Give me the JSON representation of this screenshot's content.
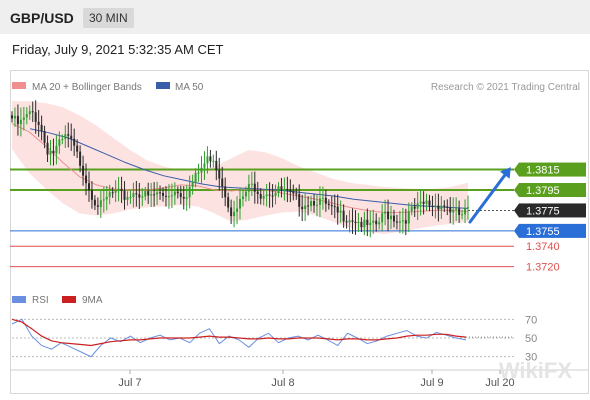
{
  "header": {
    "symbol": "GBP/USD",
    "timeframe": "30 MIN"
  },
  "datetime": "Friday, July 9, 2021 5:32:35 AM CET",
  "legend": {
    "ma20": {
      "label": "MA 20 + Bollinger Bands",
      "color": "#ef8f8f"
    },
    "ma50": {
      "label": "MA 50",
      "color": "#3a5da8"
    },
    "copyright": "Research © 2021 Trading Central"
  },
  "rsi_legend": {
    "rsi": {
      "label": "RSI",
      "color": "#6a8fe0"
    },
    "ma9": {
      "label": "9MA",
      "color": "#cc2020"
    }
  },
  "watermark": "WikiFX",
  "chart_data": {
    "type": "candlestick",
    "price_range": [
      1.3705,
      1.3885
    ],
    "levels": [
      {
        "value": 1.3815,
        "label": "1.3815",
        "role": "resistance",
        "color": "#5aa01e"
      },
      {
        "value": 1.3795,
        "label": "1.3795",
        "role": "resistance",
        "color": "#5aa01e"
      },
      {
        "value": 1.3775,
        "label": "1.3775",
        "role": "current",
        "color": "#2a2a2a"
      },
      {
        "value": 1.3755,
        "label": "1.3755",
        "role": "pivot",
        "color": "#2a6ed8"
      },
      {
        "value": 1.374,
        "label": "1.3740",
        "role": "support",
        "color": "#e05050"
      },
      {
        "value": 1.372,
        "label": "1.3720",
        "role": "support",
        "color": "#e05050"
      }
    ],
    "x_ticks": [
      "Jul 7",
      "Jul 8",
      "Jul 9",
      "Jul 20"
    ],
    "close_path": [
      1.3865,
      1.3858,
      1.3866,
      1.387,
      1.386,
      1.3835,
      1.3832,
      1.384,
      1.3848,
      1.3835,
      1.382,
      1.38,
      1.3785,
      1.3778,
      1.379,
      1.3792,
      1.3788,
      1.379,
      1.3794,
      1.379,
      1.3787,
      1.3792,
      1.3788,
      1.3793,
      1.3795,
      1.379,
      1.38,
      1.3812,
      1.3822,
      1.383,
      1.381,
      1.379,
      1.3768,
      1.3782,
      1.3795,
      1.38,
      1.3792,
      1.3794,
      1.3792,
      1.3795,
      1.379,
      1.3786,
      1.3782,
      1.3784,
      1.3786,
      1.3782,
      1.3776,
      1.3772,
      1.377,
      1.3768,
      1.3765,
      1.376,
      1.3758,
      1.3762,
      1.3772,
      1.377,
      1.3765,
      1.3768,
      1.3775,
      1.3778,
      1.3782,
      1.378,
      1.3782,
      1.3778,
      1.3772,
      1.377,
      1.3775
    ],
    "bollinger_upper": [
      1.3882,
      1.3882,
      1.388,
      1.3876,
      1.3868,
      1.3858,
      1.3846,
      1.3834,
      1.3824,
      1.3818,
      1.3814,
      1.3814,
      1.3818,
      1.3826,
      1.3834,
      1.3832,
      1.3826,
      1.3818,
      1.3812,
      1.3806,
      1.3802,
      1.38,
      1.3798,
      1.3797,
      1.3796,
      1.3796,
      1.3798,
      1.3802
    ],
    "bollinger_lower": [
      1.3835,
      1.3812,
      1.3796,
      1.3782,
      1.3772,
      1.377,
      1.3772,
      1.3776,
      1.3778,
      1.3779,
      1.378,
      1.3779,
      1.3772,
      1.3764,
      1.3766,
      1.377,
      1.3773,
      1.3774,
      1.377,
      1.3764,
      1.3758,
      1.3754,
      1.3752,
      1.3754,
      1.3757,
      1.376,
      1.3762,
      1.3764
    ],
    "ma20": [
      1.386,
      1.3852,
      1.3838,
      1.3822,
      1.3808,
      1.38,
      1.3796,
      1.3795,
      1.3795,
      1.3797,
      1.38,
      1.3799,
      1.3795,
      1.3794,
      1.3796,
      1.3795,
      1.3792,
      1.3789,
      1.3786,
      1.3782,
      1.3778,
      1.3775,
      1.3773,
      1.3773,
      1.3774,
      1.3775,
      1.3775,
      1.3774
    ],
    "ma50": [
      1.3855,
      1.3851,
      1.3846,
      1.3838,
      1.383,
      1.3822,
      1.3815,
      1.3809,
      1.3805,
      1.3801,
      1.3798,
      1.3797,
      1.3796,
      1.3795,
      1.3793,
      1.3791,
      1.3789,
      1.3786,
      1.3784,
      1.3782,
      1.378,
      1.3779,
      1.3778,
      1.3777
    ],
    "forecast_target": 1.3815,
    "rsi": {
      "range": [
        20,
        80
      ],
      "levels": [
        70,
        50,
        30
      ],
      "rsi_values": [
        65,
        70,
        52,
        42,
        38,
        45,
        40,
        35,
        30,
        42,
        50,
        46,
        52,
        45,
        50,
        53,
        48,
        50,
        45,
        55,
        60,
        44,
        52,
        48,
        40,
        50,
        55,
        45,
        50,
        52,
        48,
        53,
        48,
        42,
        55,
        50,
        44,
        47,
        52,
        55,
        58,
        52,
        50,
        56,
        53,
        50,
        48
      ],
      "ma9_values": [
        70,
        67,
        60,
        52,
        47,
        45,
        44,
        43,
        42,
        44,
        46,
        47,
        48,
        48,
        49,
        50,
        50,
        50,
        50,
        51,
        52,
        51,
        51,
        50,
        49,
        49,
        50,
        49,
        49,
        50,
        50,
        50,
        49,
        48,
        49,
        49,
        48,
        48,
        49,
        50,
        52,
        53,
        53,
        54,
        54,
        52,
        51
      ]
    }
  }
}
